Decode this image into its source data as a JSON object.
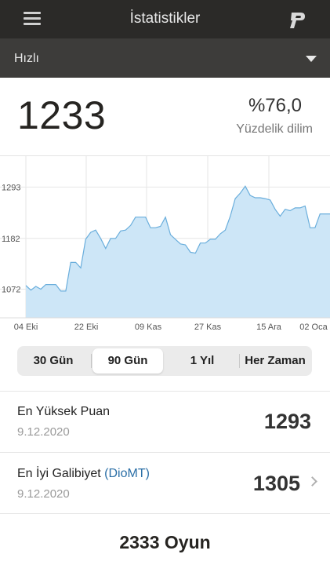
{
  "header": {
    "title": "İstatistikler"
  },
  "variant": {
    "selected": "Hızlı"
  },
  "summary": {
    "rating": "1233",
    "percentile_value": "%76,0",
    "percentile_label": "Yüzdelik dilim"
  },
  "chart_data": {
    "type": "area",
    "title": "",
    "x_ticks": [
      "04 Eki",
      "22 Eki",
      "09 Kas",
      "27 Kas",
      "15 Ara",
      "02 Oca"
    ],
    "y_ticks": [
      1072,
      1182,
      1293
    ],
    "ylim": [
      1010,
      1360
    ],
    "grid": true,
    "series": [
      {
        "values": [
          1080,
          1070,
          1078,
          1072,
          1082,
          1082,
          1082,
          1068,
          1068,
          1130,
          1130,
          1118,
          1180,
          1195,
          1200,
          1182,
          1160,
          1182,
          1182,
          1198,
          1200,
          1210,
          1228,
          1228,
          1228,
          1205,
          1205,
          1208,
          1228,
          1190,
          1180,
          1170,
          1168,
          1152,
          1150,
          1172,
          1172,
          1180,
          1180,
          1192,
          1200,
          1230,
          1268,
          1280,
          1295,
          1275,
          1270,
          1270,
          1268,
          1265,
          1245,
          1230,
          1245,
          1242,
          1248,
          1248,
          1252,
          1205,
          1205,
          1235,
          1235,
          1235
        ]
      }
    ],
    "colors": {
      "fill": "#cde6f7",
      "line": "#6aaedc"
    }
  },
  "range_tabs": {
    "items": [
      "30 Gün",
      "90 Gün",
      "1 Yıl",
      "Her Zaman"
    ],
    "active": 1
  },
  "stats": {
    "highest": {
      "title": "En Yüksek Puan",
      "date": "9.12.2020",
      "value": "1293"
    },
    "best_win": {
      "title": "En İyi Galibiyet",
      "opponent": "(DioMT)",
      "date": "9.12.2020",
      "value": "1305"
    }
  },
  "games": {
    "label": "2333 Oyun"
  }
}
